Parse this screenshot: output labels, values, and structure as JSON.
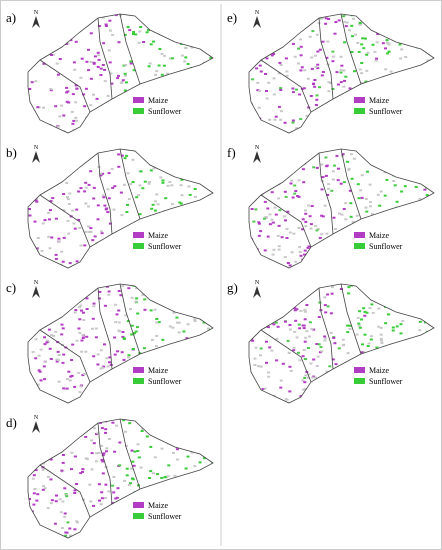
{
  "panels": [
    {
      "label": "a)",
      "north": "N",
      "legend": [
        "Maize",
        "Sunflower"
      ]
    },
    {
      "label": "b)",
      "north": "N",
      "legend": [
        "Maize",
        "Sunflower"
      ]
    },
    {
      "label": "c)",
      "north": "N",
      "legend": [
        "Maize",
        "Sunflower"
      ]
    },
    {
      "label": "d)",
      "north": "N",
      "legend": [
        "Maize",
        "Sunflower"
      ]
    },
    {
      "label": "e)",
      "north": "N",
      "legend": [
        "Maize",
        "Sunflower"
      ]
    },
    {
      "label": "f)",
      "north": "N",
      "legend": [
        "Maize",
        "Sunflower"
      ]
    },
    {
      "label": "g)",
      "north": "N",
      "legend": [
        "Maize",
        "Sunflower"
      ]
    }
  ]
}
